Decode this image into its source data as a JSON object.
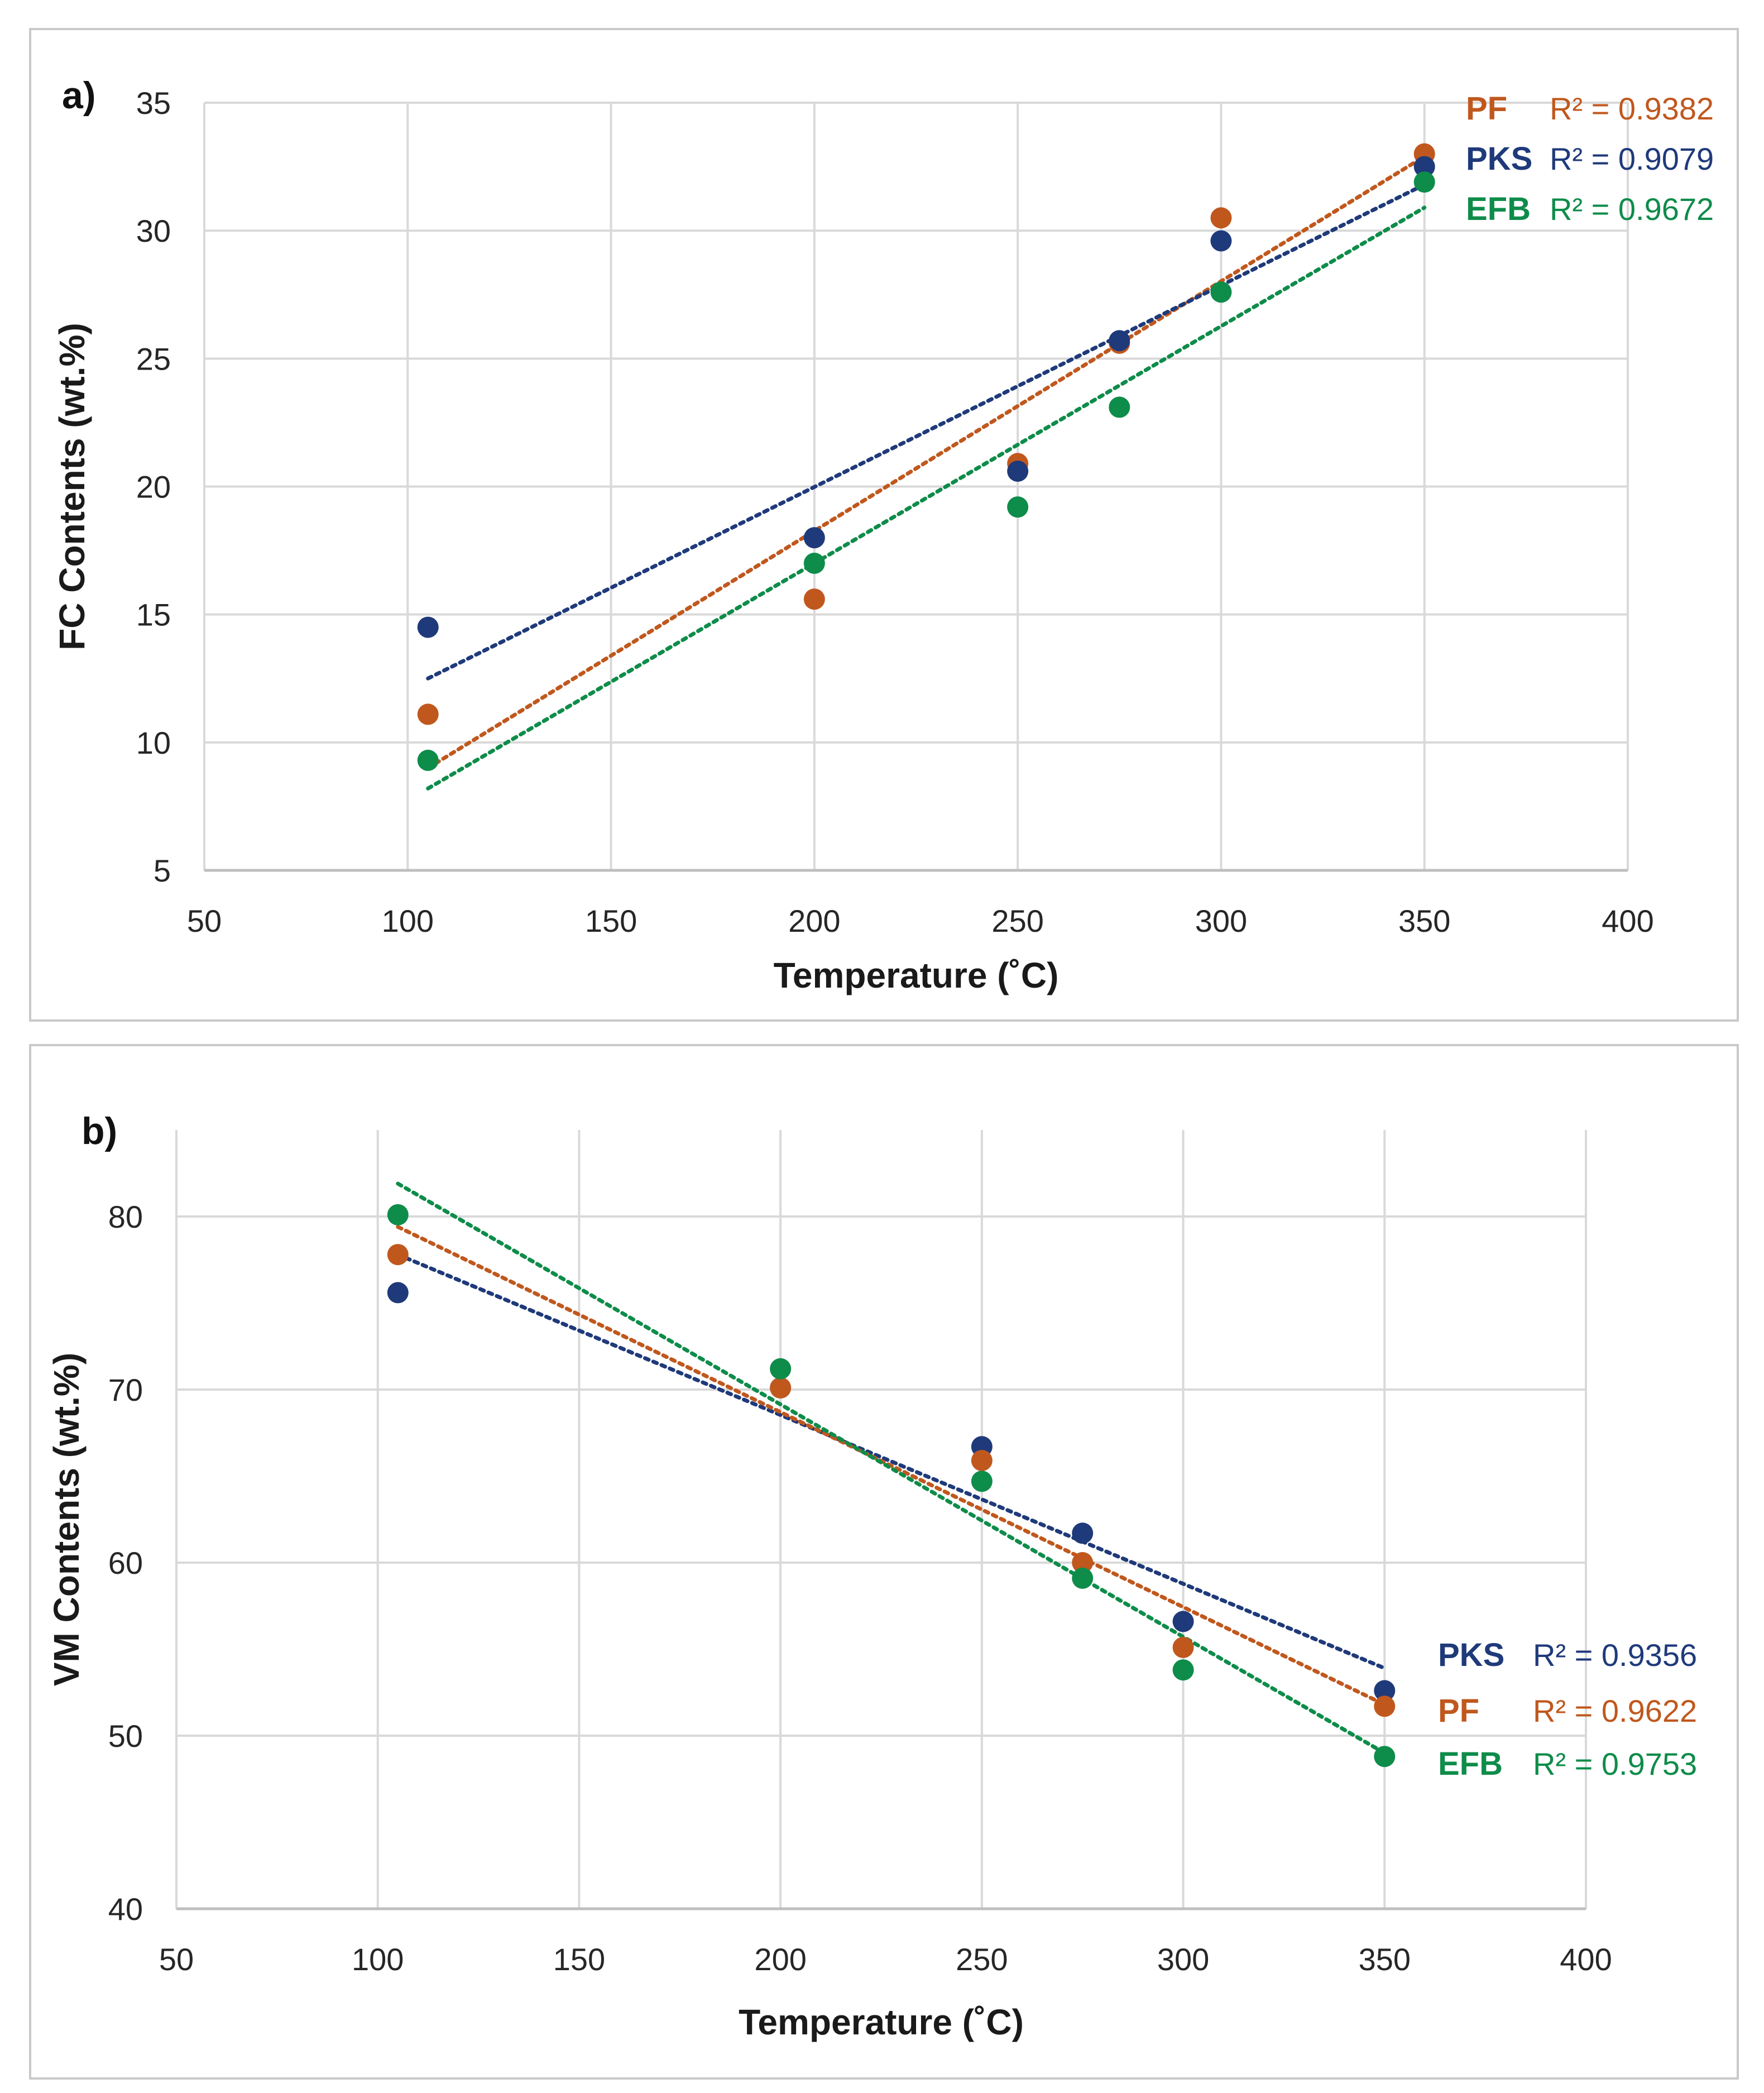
{
  "colors": {
    "PF": "#C0581E",
    "PKS": "#1F3A7A",
    "EFB": "#0E8C4A",
    "grid": "#D9D9D9"
  },
  "chart_data": [
    {
      "type": "scatter",
      "panel_label": "a)",
      "xlabel": "Temperature (˚C)",
      "ylabel": "FC Contents (wt.%)",
      "xlim": [
        50,
        400
      ],
      "ylim": [
        5,
        35
      ],
      "xticks": [
        50,
        100,
        150,
        200,
        250,
        300,
        350,
        400
      ],
      "yticks": [
        5,
        10,
        15,
        20,
        25,
        30,
        35
      ],
      "xtick_labels": [
        "50",
        "100",
        "150",
        "200",
        "250",
        "300",
        "350",
        "400"
      ],
      "ytick_labels": [
        "5",
        "10",
        "15",
        "20",
        "25",
        "30",
        "35"
      ],
      "grid": true,
      "legend_position": "top-right",
      "series": [
        {
          "name": "PF",
          "x": [
            105,
            200,
            250,
            275,
            300,
            350
          ],
          "y": [
            11.1,
            15.6,
            20.9,
            25.6,
            30.5,
            33.0
          ],
          "trend": [
            105,
            9.0,
            350,
            32.9
          ],
          "r2": "R² = 0.9382"
        },
        {
          "name": "PKS",
          "x": [
            105,
            200,
            250,
            275,
            300,
            350
          ],
          "y": [
            14.5,
            18.0,
            20.6,
            25.7,
            29.6,
            32.5
          ],
          "trend": [
            105,
            12.5,
            350,
            31.8
          ],
          "r2": "R² = 0.9079"
        },
        {
          "name": "EFB",
          "x": [
            105,
            200,
            250,
            275,
            300,
            350
          ],
          "y": [
            9.3,
            17.0,
            19.2,
            23.1,
            27.6,
            31.9
          ],
          "trend": [
            105,
            8.2,
            350,
            30.9
          ],
          "r2": "R² = 0.9672"
        }
      ],
      "legend_order": [
        "PF",
        "PKS",
        "EFB"
      ]
    },
    {
      "type": "scatter",
      "panel_label": "b)",
      "xlabel": "Temperature (˚C)",
      "ylabel": "VM Contents (wt.%)",
      "xlim": [
        50,
        400
      ],
      "ylim": [
        40,
        85
      ],
      "xticks": [
        50,
        100,
        150,
        200,
        250,
        300,
        350,
        400
      ],
      "yticks": [
        40,
        50,
        60,
        70,
        80
      ],
      "xtick_labels": [
        "50",
        "100",
        "150",
        "200",
        "250",
        "300",
        "350",
        "400"
      ],
      "ytick_labels": [
        "40",
        "50",
        "60",
        "70",
        "80"
      ],
      "grid": true,
      "legend_position": "bottom-right",
      "series": [
        {
          "name": "PKS",
          "x": [
            105,
            200,
            250,
            275,
            300,
            350
          ],
          "y": [
            75.6,
            70.1,
            66.7,
            61.7,
            56.6,
            52.6
          ],
          "trend": [
            105,
            77.8,
            350,
            53.9
          ],
          "r2": "R² = 0.9356"
        },
        {
          "name": "PF",
          "x": [
            105,
            200,
            250,
            275,
            300,
            350
          ],
          "y": [
            77.8,
            70.1,
            65.9,
            60.0,
            55.1,
            51.7
          ],
          "trend": [
            105,
            79.4,
            350,
            51.8
          ],
          "r2": "R² = 0.9622"
        },
        {
          "name": "EFB",
          "x": [
            105,
            200,
            250,
            275,
            300,
            350
          ],
          "y": [
            80.1,
            71.2,
            64.7,
            59.1,
            53.8,
            48.8
          ],
          "trend": [
            105,
            81.9,
            350,
            49.0
          ],
          "r2": "R² = 0.9753"
        }
      ],
      "legend_order": [
        "PKS",
        "PF",
        "EFB"
      ]
    }
  ]
}
